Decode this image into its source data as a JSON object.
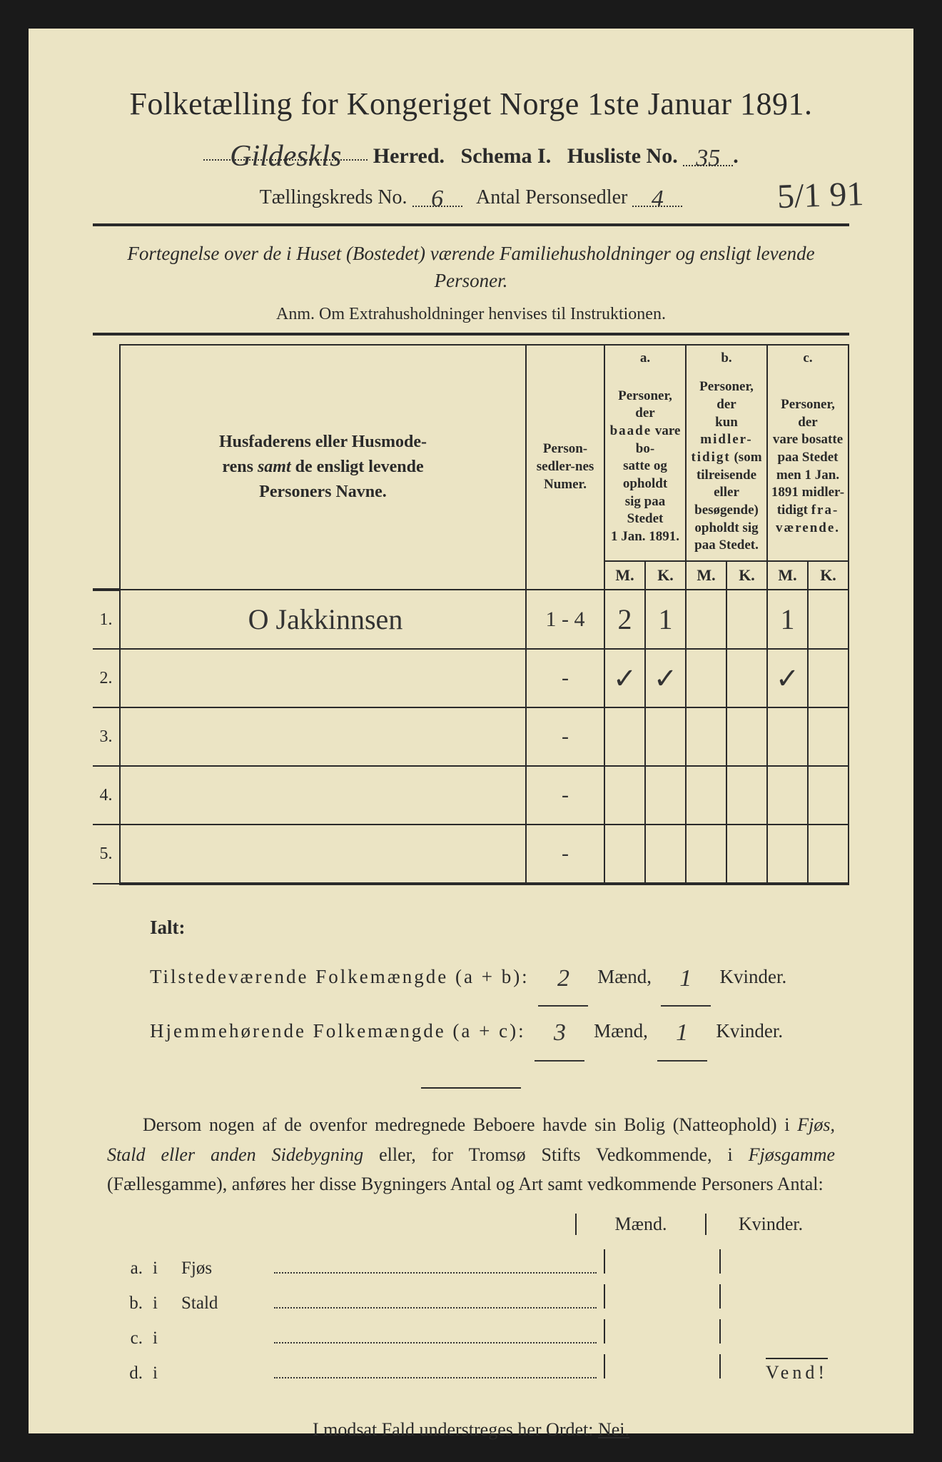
{
  "title": "Folketælling for Kongeriget Norge 1ste Januar 1891.",
  "header": {
    "herred_value": "Gildeskls",
    "herred_label": "Herred.",
    "schema_label": "Schema I.",
    "husliste_label": "Husliste No.",
    "husliste_value": "35",
    "kreds_label": "Tællingskreds No.",
    "kreds_value": "6",
    "antal_label": "Antal Personsedler",
    "antal_value": "4",
    "corner_date": "5/1 91"
  },
  "subtitle": "Fortegnelse over de i Huset (Bostedet) værende Familiehusholdninger og ensligt levende Personer.",
  "anm": "Anm.  Om Extrahusholdninger henvises til Instruktionen.",
  "table": {
    "col_name": "Husfaderens eller Husmoderens samt de ensligt levende Personers Navne.",
    "col_numer": "Person-sedler-nes Numer.",
    "col_a_head": "a.",
    "col_a": "Personer, der baade vare bosatte og opholdt sig paa Stedet 1 Jan. 1891.",
    "col_b_head": "b.",
    "col_b": "Personer, der kun midlertidigt (som tilreisende eller besøgende) opholdt sig paa Stedet.",
    "col_c_head": "c.",
    "col_c": "Personer, der vare bosatte paa Stedet men 1 Jan. 1891 midlertidigt fraværende.",
    "m": "M.",
    "k": "K.",
    "rows": [
      {
        "n": "1.",
        "name": "O Jakkinnsen",
        "numer": "1 - 4",
        "am": "2",
        "ak": "1",
        "bm": "",
        "bk": "",
        "cm": "1",
        "ck": ""
      },
      {
        "n": "2.",
        "name": "",
        "numer": "-",
        "am": "✓",
        "ak": "✓",
        "bm": "",
        "bk": "",
        "cm": "✓",
        "ck": ""
      },
      {
        "n": "3.",
        "name": "",
        "numer": "-",
        "am": "",
        "ak": "",
        "bm": "",
        "bk": "",
        "cm": "",
        "ck": ""
      },
      {
        "n": "4.",
        "name": "",
        "numer": "-",
        "am": "",
        "ak": "",
        "bm": "",
        "bk": "",
        "cm": "",
        "ck": ""
      },
      {
        "n": "5.",
        "name": "",
        "numer": "-",
        "am": "",
        "ak": "",
        "bm": "",
        "bk": "",
        "cm": "",
        "ck": ""
      }
    ]
  },
  "totals": {
    "ialt": "Ialt:",
    "line1_label": "Tilstedeværende Folkemængde (a + b):",
    "line1_m": "2",
    "line1_k": "1",
    "line2_label": "Hjemmehørende Folkemængde (a + c):",
    "line2_m": "3",
    "line2_k": "1",
    "maend": "Mænd,",
    "kvinder": "Kvinder."
  },
  "bodytext": "Dersom nogen af de ovenfor medregnede Beboere havde sin Bolig (Natteophold) i Fjøs, Stald eller anden Sidebygning eller, for Tromsø Stifts Vedkommende, i Fjøsgamme (Fællesgamme), anføres her disse Bygningers Antal og Art samt vedkommende Personers Antal:",
  "buildings": {
    "maend": "Mænd.",
    "kvinder": "Kvinder.",
    "rows": [
      {
        "lett": "a.",
        "i": "i",
        "name": "Fjøs"
      },
      {
        "lett": "b.",
        "i": "i",
        "name": "Stald"
      },
      {
        "lett": "c.",
        "i": "i",
        "name": ""
      },
      {
        "lett": "d.",
        "i": "i",
        "name": ""
      }
    ]
  },
  "final": {
    "text": "I modsat Fald understreges her Ordet:",
    "nei": "Nei."
  },
  "vend": "Vend!",
  "colors": {
    "paper": "#ebe4c4",
    "ink": "#2a2a2a",
    "frame": "#1a1a1a"
  }
}
